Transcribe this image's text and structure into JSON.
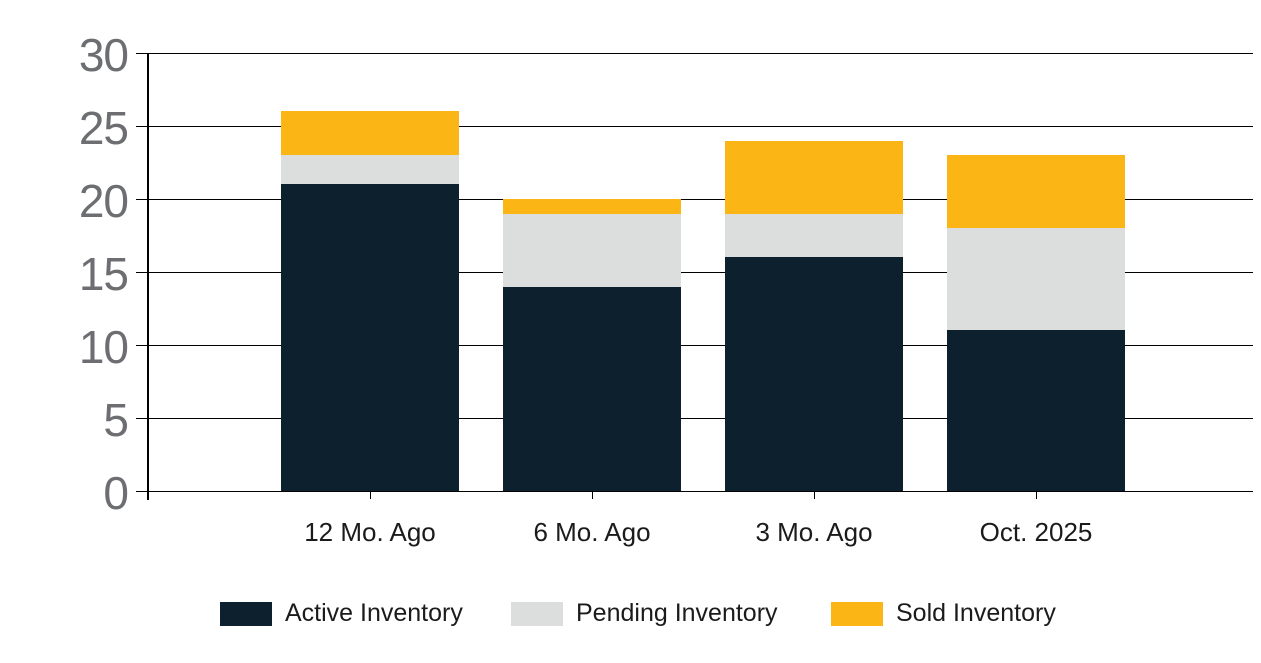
{
  "chart_data": {
    "type": "bar",
    "stacked": true,
    "title": "",
    "xlabel": "",
    "ylabel": "",
    "categories": [
      "12 Mo. Ago",
      "6 Mo. Ago",
      "3 Mo. Ago",
      "Oct. 2025"
    ],
    "series": [
      {
        "name": "Active Inventory",
        "color": "#0c202e",
        "values": [
          21,
          14,
          16,
          11
        ]
      },
      {
        "name": "Pending Inventory",
        "color": "#dcdddd",
        "values": [
          2,
          5,
          3,
          7
        ]
      },
      {
        "name": "Sold Inventory",
        "color": "#fbb615",
        "values": [
          3,
          1,
          5,
          5
        ]
      }
    ],
    "stack_totals": [
      26,
      20,
      24,
      23
    ],
    "ylim": [
      0,
      30
    ],
    "yticks": [
      0,
      5,
      10,
      15,
      20,
      25,
      30
    ],
    "grid": true,
    "legend_position": "bottom"
  },
  "colors": {
    "background": "#ffffff",
    "gridline": "#000000",
    "axis_line": "#000000",
    "y_tick_label": "#6d6e71",
    "x_tick_label": "#1b1b1b",
    "legend_text": "#1b1b1b"
  }
}
